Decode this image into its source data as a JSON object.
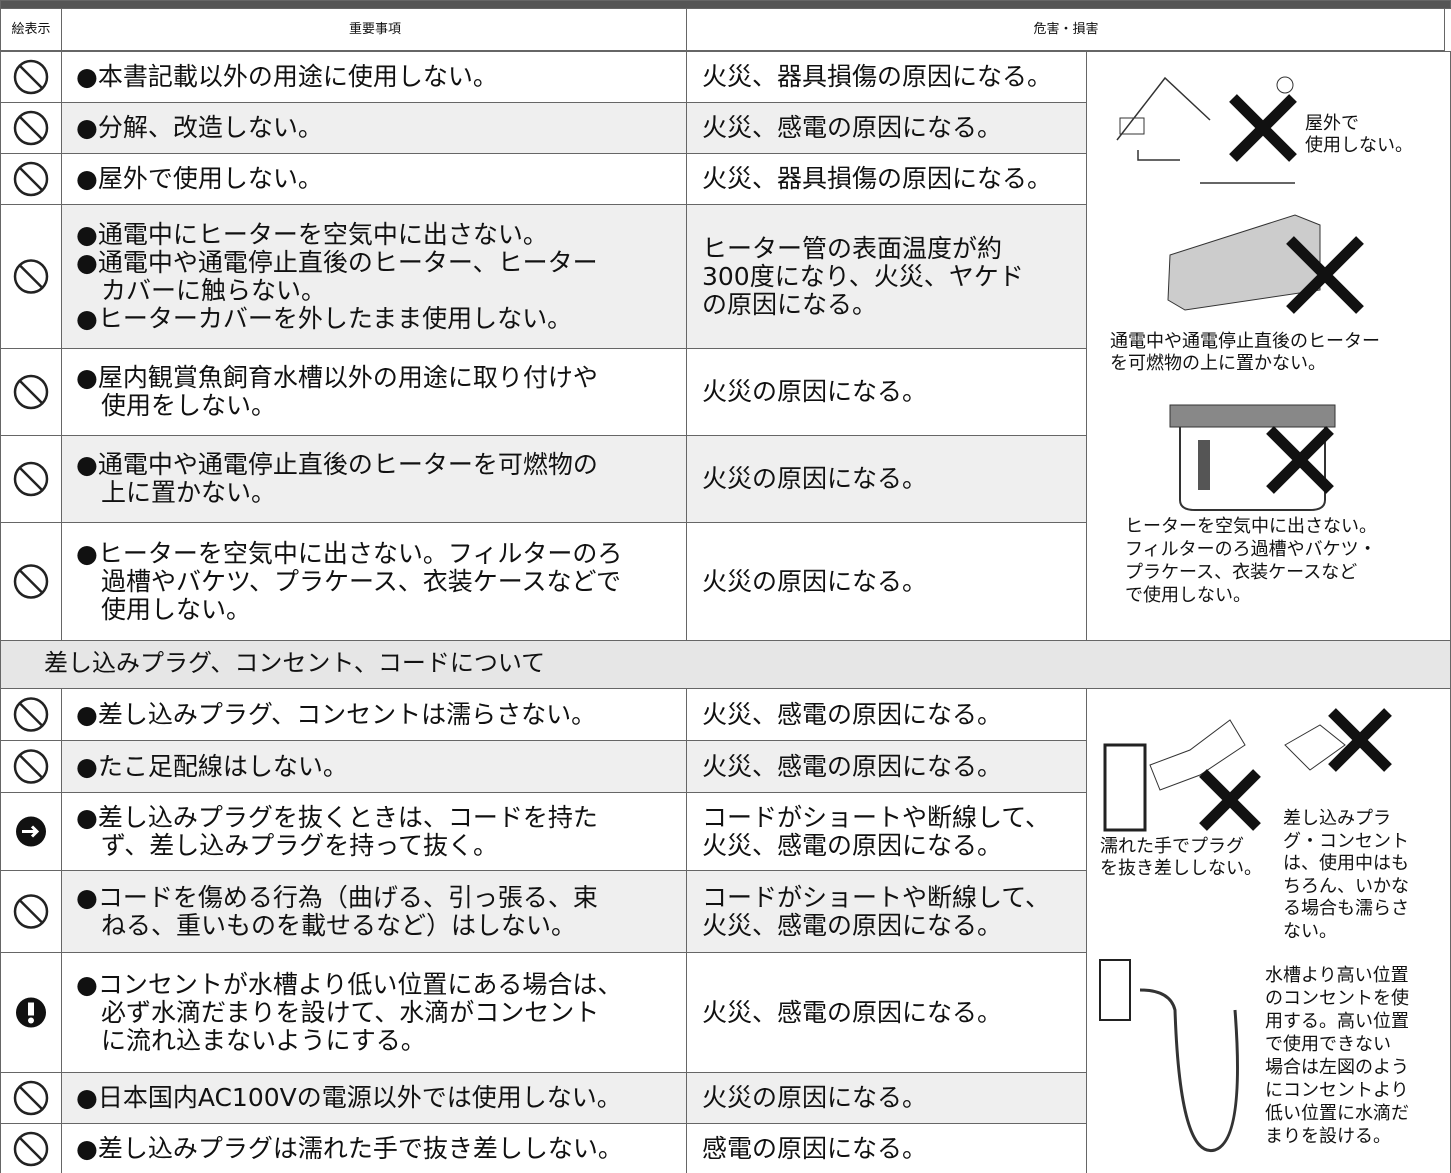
{
  "header": {
    "icon": "絵表示",
    "item": "重要事項",
    "harm": "危害・損害"
  },
  "sections": [
    {
      "rows": [
        {
          "item": [
            "●本書記載以外の用途に使用しない。"
          ],
          "harm": [
            "火災、器具損傷の原因になる。"
          ]
        },
        {
          "item": [
            "●分解、改造しない。"
          ],
          "harm": [
            "火災、感電の原因になる。"
          ]
        },
        {
          "item": [
            "●屋外で使用しない。"
          ],
          "harm": [
            "火災、器具損傷の原因になる。"
          ]
        },
        {
          "item": [
            "●通電中にヒーターを空気中に出さない。",
            "●通電中や通電停止直後のヒーター、ヒーター",
            "　カバーに触らない。",
            "●ヒーターカバーを外したまま使用しない。"
          ],
          "harm": [
            "ヒーター管の表面温度が約",
            "300度になり、火災、ヤケド",
            "の原因になる。"
          ]
        },
        {
          "item": [
            "●屋内観賞魚飼育水槽以外の用途に取り付けや",
            "　使用をしない。"
          ],
          "harm": [
            "火災の原因になる。"
          ]
        },
        {
          "item": [
            "●通電中や通電停止直後のヒーターを可燃物の",
            "　上に置かない。"
          ],
          "harm": [
            "火災の原因になる。"
          ]
        },
        {
          "item": [
            "●ヒーターを空気中に出さない。フィルターのろ",
            "　過槽やバケツ、プラケース、衣装ケースなどで",
            "　使用しない。"
          ],
          "harm": [
            "火災の原因になる。"
          ]
        }
      ],
      "figures": [
        {
          "caption": [
            "屋外で",
            "使用しない。"
          ]
        },
        {
          "caption": [
            "通電中や通電停止直後のヒーター",
            "を可燃物の上に置かない。"
          ]
        },
        {
          "caption": [
            "ヒーターを空気中に出さない。",
            "フィルターのろ過槽やバケツ・",
            "プラケース、衣装ケースなど",
            "で使用しない。"
          ]
        }
      ]
    },
    {
      "title": "差し込みプラグ、コンセント、コードについて",
      "rows": [
        {
          "item": [
            "●差し込みプラグ、コンセントは濡らさない。"
          ],
          "harm": [
            "火災、感電の原因になる。"
          ]
        },
        {
          "item": [
            "●たこ足配線はしない。"
          ],
          "harm": [
            "火災、感電の原因になる。"
          ]
        },
        {
          "item": [
            "●差し込みプラグを抜くときは、コードを持た",
            "　ず、差し込みプラグを持って抜く。"
          ],
          "harm": [
            "コードがショートや断線して、",
            "火災、感電の原因になる。"
          ]
        },
        {
          "item": [
            "●コードを傷める行為（曲げる、引っ張る、束",
            "　ねる、重いものを載せるなど）はしない。"
          ],
          "harm": [
            "コードがショートや断線して、",
            "火災、感電の原因になる。"
          ]
        },
        {
          "item": [
            "●コンセントが水槽より低い位置にある場合は、",
            "　必ず水滴だまりを設けて、水滴がコンセント",
            "　に流れ込まないようにする。"
          ],
          "harm": [
            "火災、感電の原因になる。"
          ]
        },
        {
          "item": [
            "●日本国内AC100Vの電源以外では使用しない。"
          ],
          "harm": [
            "火災の原因になる。"
          ]
        },
        {
          "item": [
            "●差し込みプラグは濡れた手で抜き差ししない。"
          ],
          "harm": [
            "感電の原因になる。"
          ]
        }
      ],
      "figures": [
        {
          "caption": [
            "濡れた手でプラグ",
            "を抜き差ししない。"
          ]
        },
        {
          "caption": [
            "差し込みプラ",
            "グ・コンセント",
            "は、使用中はも",
            "ちろん、いかな",
            "る場合も濡らさ",
            "ない。"
          ]
        },
        {
          "caption": [
            "水槽より高い位置",
            "のコンセントを使",
            "用する。高い位置",
            "で使用できない",
            "場合は左図のよう",
            "にコンセントより",
            "低い位置に水滴だ",
            "まりを設ける。"
          ]
        }
      ]
    }
  ]
}
